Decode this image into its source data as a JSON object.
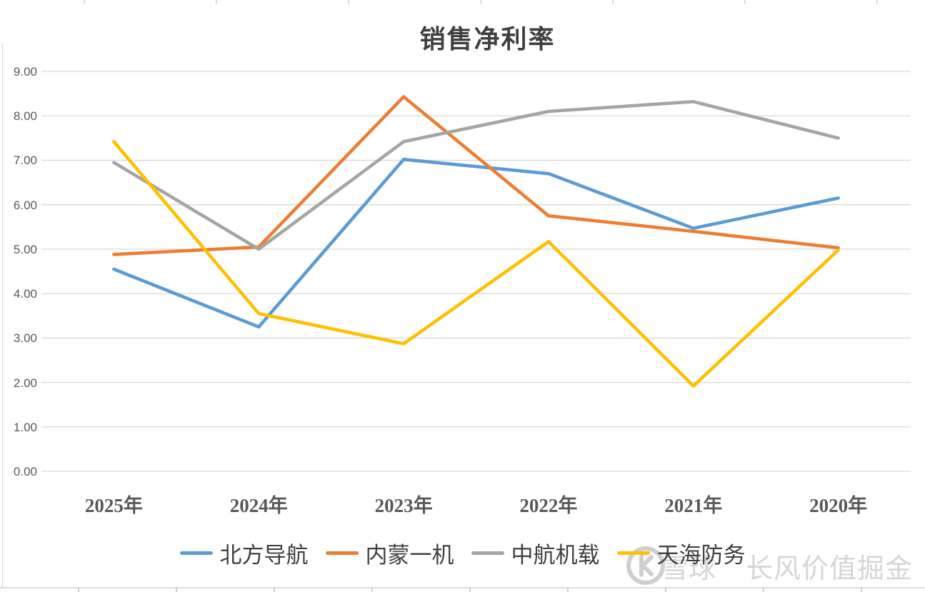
{
  "chart_data": {
    "type": "line",
    "title": "销售净利率",
    "categories": [
      "2025年",
      "2024年",
      "2023年",
      "2022年",
      "2021年",
      "2020年"
    ],
    "series": [
      {
        "name": "北方导航",
        "color": "#5B9BD5",
        "values": [
          4.55,
          3.25,
          7.02,
          6.7,
          5.47,
          6.15
        ]
      },
      {
        "name": "内蒙一机",
        "color": "#ED7D31",
        "values": [
          4.88,
          5.05,
          8.43,
          5.75,
          5.4,
          5.03
        ]
      },
      {
        "name": "中航机载",
        "color": "#A5A5A5",
        "values": [
          6.95,
          5.0,
          7.42,
          8.1,
          8.32,
          7.5
        ]
      },
      {
        "name": "天海防务",
        "color": "#FFC000",
        "values": [
          7.42,
          3.55,
          2.87,
          5.17,
          1.92,
          4.98
        ]
      }
    ],
    "ylim": [
      0,
      9
    ],
    "ytick_step": 1,
    "ytick_format": "two-decimals",
    "grid": true,
    "grid_color": "#D9D9D9",
    "axis_text_color": "#595959",
    "title_text_color": "#404040",
    "legend_position": "bottom"
  },
  "watermark": {
    "logo": "xueqiu-logo",
    "brand": "雪球",
    "suffix": "长风价值掘金",
    "color": "#D6D6D6"
  }
}
